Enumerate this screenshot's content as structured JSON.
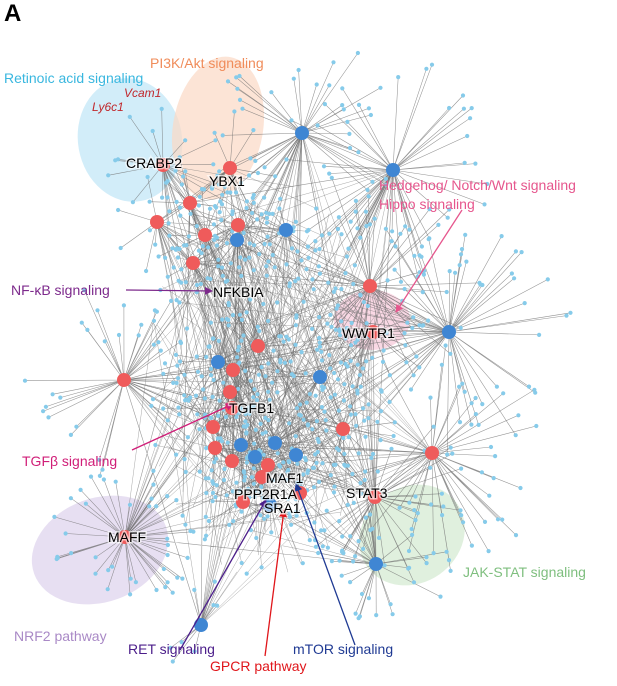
{
  "panel_label": "A",
  "colors": {
    "edge": "#6e6e6e",
    "leaf": "#86cbea",
    "hub_red": "#ef5b5b",
    "hub_blue": "#3f86d3"
  },
  "pathways": [
    {
      "id": "retinoic",
      "label": "Retinoic acid signaling",
      "color": "#39b7df",
      "fill": "#bfe6f7"
    },
    {
      "id": "pi3k",
      "label": "PI3K/Akt signaling",
      "color": "#f08c5a",
      "fill": "#fbd9c4"
    },
    {
      "id": "hedgehog",
      "label": "Hedgehog/ Notch/Wnt signaling",
      "color": "#e6568d",
      "fill": "#f6c8d9"
    },
    {
      "id": "hippo",
      "label": "Hippo signaling",
      "color": "#e6568d"
    },
    {
      "id": "nfkb",
      "label": "NF-κB signaling",
      "color": "#7d2a8c"
    },
    {
      "id": "tgfb",
      "label": "TGFβ signaling",
      "color": "#d01e78"
    },
    {
      "id": "jakstat",
      "label": "JAK-STAT signaling",
      "color": "#7fbf7f",
      "fill": "#d3ead0"
    },
    {
      "id": "nrf2",
      "label": "NRF2 pathway",
      "color": "#a989c6",
      "fill": "#ddd2ec"
    },
    {
      "id": "ret",
      "label": "RET signaling",
      "color": "#4b1d8a"
    },
    {
      "id": "gpcr",
      "label": "GPCR pathway",
      "color": "#e0161b"
    },
    {
      "id": "mtor",
      "label": "mTOR signaling",
      "color": "#1f3a93"
    }
  ],
  "genes": {
    "vcam1": "Vcam1",
    "ly6c1": "Ly6c1",
    "crabp2": "CRABP2",
    "ybx1": "YBX1",
    "nfkbia": "NFKBIA",
    "wwtr1": "WWTR1",
    "tgfb1": "TGFB1",
    "maf1": "MAF1",
    "ppp2r1a": "PPP2R1A",
    "sra1": "SRA1",
    "stat3": "STAT3",
    "maff": "MAFF"
  }
}
